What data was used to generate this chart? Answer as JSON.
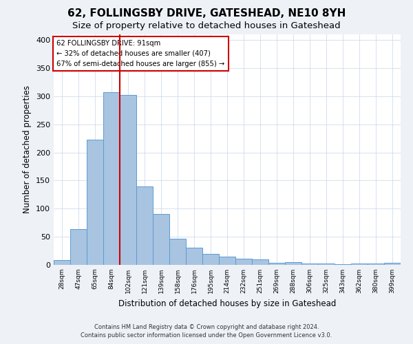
{
  "title": "62, FOLLINGSBY DRIVE, GATESHEAD, NE10 8YH",
  "subtitle": "Size of property relative to detached houses in Gateshead",
  "xlabel": "Distribution of detached houses by size in Gateshead",
  "ylabel": "Number of detached properties",
  "bar_labels": [
    "28sqm",
    "47sqm",
    "65sqm",
    "84sqm",
    "102sqm",
    "121sqm",
    "139sqm",
    "158sqm",
    "176sqm",
    "195sqm",
    "214sqm",
    "232sqm",
    "251sqm",
    "269sqm",
    "288sqm",
    "306sqm",
    "325sqm",
    "343sqm",
    "362sqm",
    "380sqm",
    "399sqm"
  ],
  "bar_values": [
    9,
    64,
    223,
    307,
    302,
    140,
    90,
    46,
    31,
    20,
    15,
    11,
    10,
    4,
    5,
    3,
    2,
    1,
    3,
    2,
    4
  ],
  "bar_color": "#a8c4e0",
  "bar_edge_color": "#5b9bd5",
  "vline_color": "#cc0000",
  "vline_pos": 4.0,
  "annotation_title": "62 FOLLINGSBY DRIVE: 91sqm",
  "annotation_line1": "← 32% of detached houses are smaller (407)",
  "annotation_line2": "67% of semi-detached houses are larger (855) →",
  "annotation_box_color": "#ffffff",
  "annotation_box_edge": "#cc0000",
  "ylim": [
    0,
    410
  ],
  "yticks": [
    0,
    50,
    100,
    150,
    200,
    250,
    300,
    350,
    400
  ],
  "bg_color": "#eef2f7",
  "plot_bg_color": "#ffffff",
  "footer_line1": "Contains HM Land Registry data © Crown copyright and database right 2024.",
  "footer_line2": "Contains public sector information licensed under the Open Government Licence v3.0.",
  "title_fontsize": 11,
  "subtitle_fontsize": 9.5,
  "xlabel_fontsize": 8.5,
  "ylabel_fontsize": 8.5,
  "grid_color": "#c8d4e8"
}
